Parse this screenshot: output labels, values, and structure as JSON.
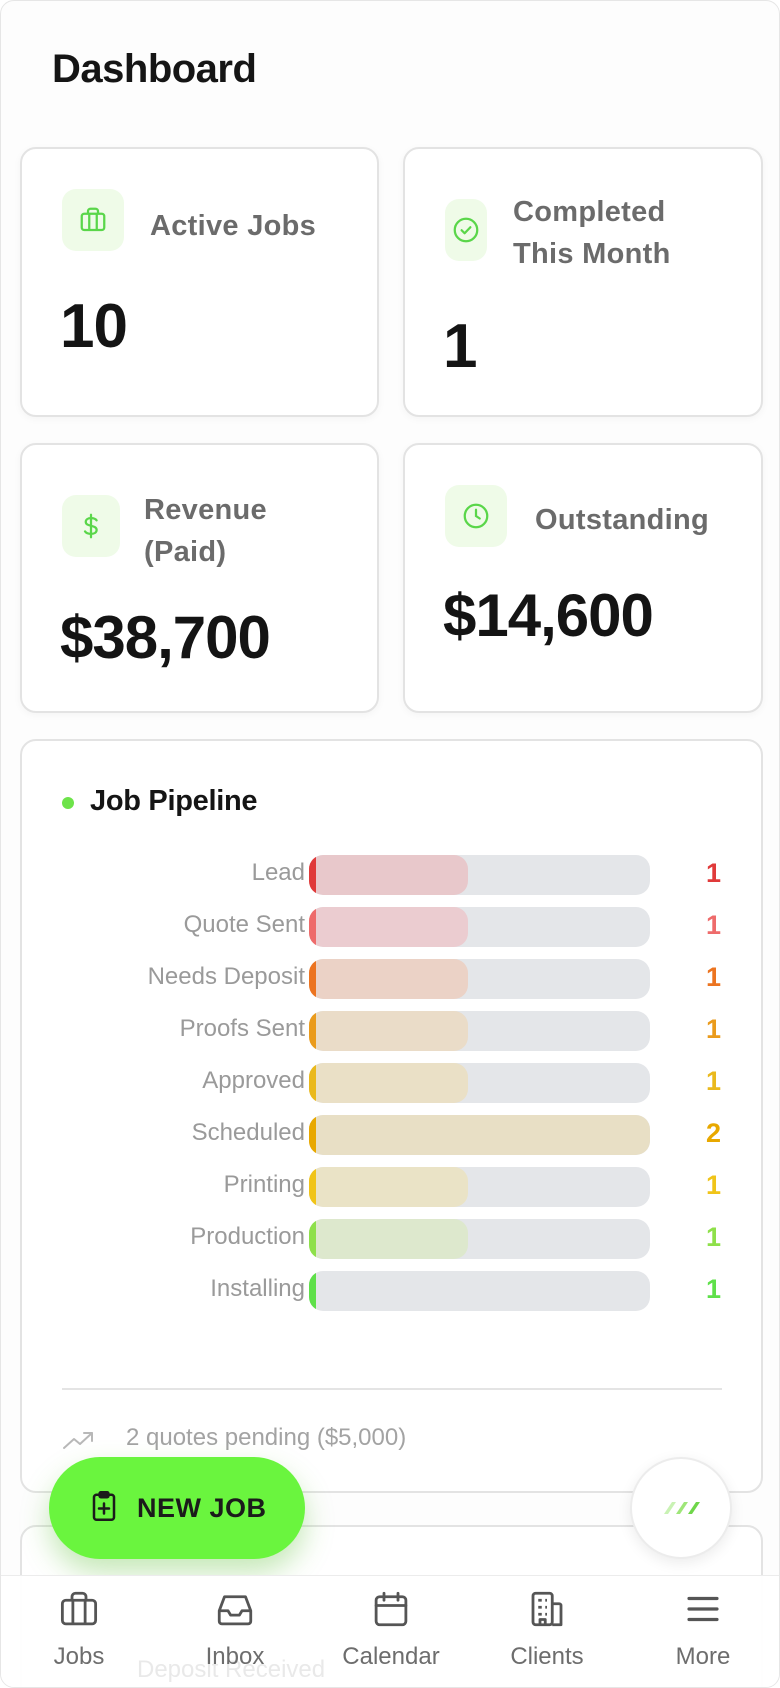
{
  "header": {
    "title": "Dashboard"
  },
  "stats": {
    "active_jobs": {
      "label": "Active Jobs",
      "value": "10",
      "icon": "briefcase-icon"
    },
    "completed": {
      "label_line1": "Completed",
      "label_line2": "This Month",
      "value": "1",
      "icon": "check-circle-icon"
    },
    "revenue": {
      "label_line1": "Revenue",
      "label_line2": "(Paid)",
      "value": "$38,700",
      "icon": "dollar-icon"
    },
    "outstanding": {
      "label": "Outstanding",
      "value": "$14,600",
      "icon": "clock-icon"
    }
  },
  "pipeline": {
    "title": "Job Pipeline",
    "max_count": 2,
    "rows": [
      {
        "label": "Lead",
        "count": 1,
        "color": "#e03a3a",
        "fill": "#e8c8cb"
      },
      {
        "label": "Quote Sent",
        "count": 1,
        "color": "#ee6b6b",
        "fill": "#ebccd0"
      },
      {
        "label": "Needs Deposit",
        "count": 1,
        "color": "#ec7420",
        "fill": "#ebd2c6"
      },
      {
        "label": "Proofs Sent",
        "count": 1,
        "color": "#ea9b1c",
        "fill": "#eadcc8"
      },
      {
        "label": "Approved",
        "count": 1,
        "color": "#eab91c",
        "fill": "#eae0c6"
      },
      {
        "label": "Scheduled",
        "count": 2,
        "color": "#e8a800",
        "fill": "#e8dfc5"
      },
      {
        "label": "Printing",
        "count": 1,
        "color": "#f0c419",
        "fill": "#eae3c6"
      },
      {
        "label": "Production",
        "count": 1,
        "color": "#8ee04a",
        "fill": "#dde8cd"
      },
      {
        "label": "Installing",
        "count": 1,
        "color": "#5fe04a",
        "fill": "#e4e6e9"
      }
    ],
    "summary": "2 quotes pending ($5,000)",
    "summary_icon": "trending-up-icon"
  },
  "fab": {
    "label": "NEW JOB",
    "icon": "clipboard-plus-icon"
  },
  "assistant": {
    "icon": "sparkle-stripes-icon"
  },
  "obscured_text": "Deposit Received",
  "nav": [
    {
      "label": "Jobs",
      "icon": "briefcase-icon"
    },
    {
      "label": "Inbox",
      "icon": "inbox-icon"
    },
    {
      "label": "Calendar",
      "icon": "calendar-icon"
    },
    {
      "label": "Clients",
      "icon": "building-icon"
    },
    {
      "label": "More",
      "icon": "menu-icon"
    }
  ],
  "colors": {
    "accent": "#6af53e",
    "accent_soft": "#effbe8",
    "icon_green": "#5ad64a"
  }
}
